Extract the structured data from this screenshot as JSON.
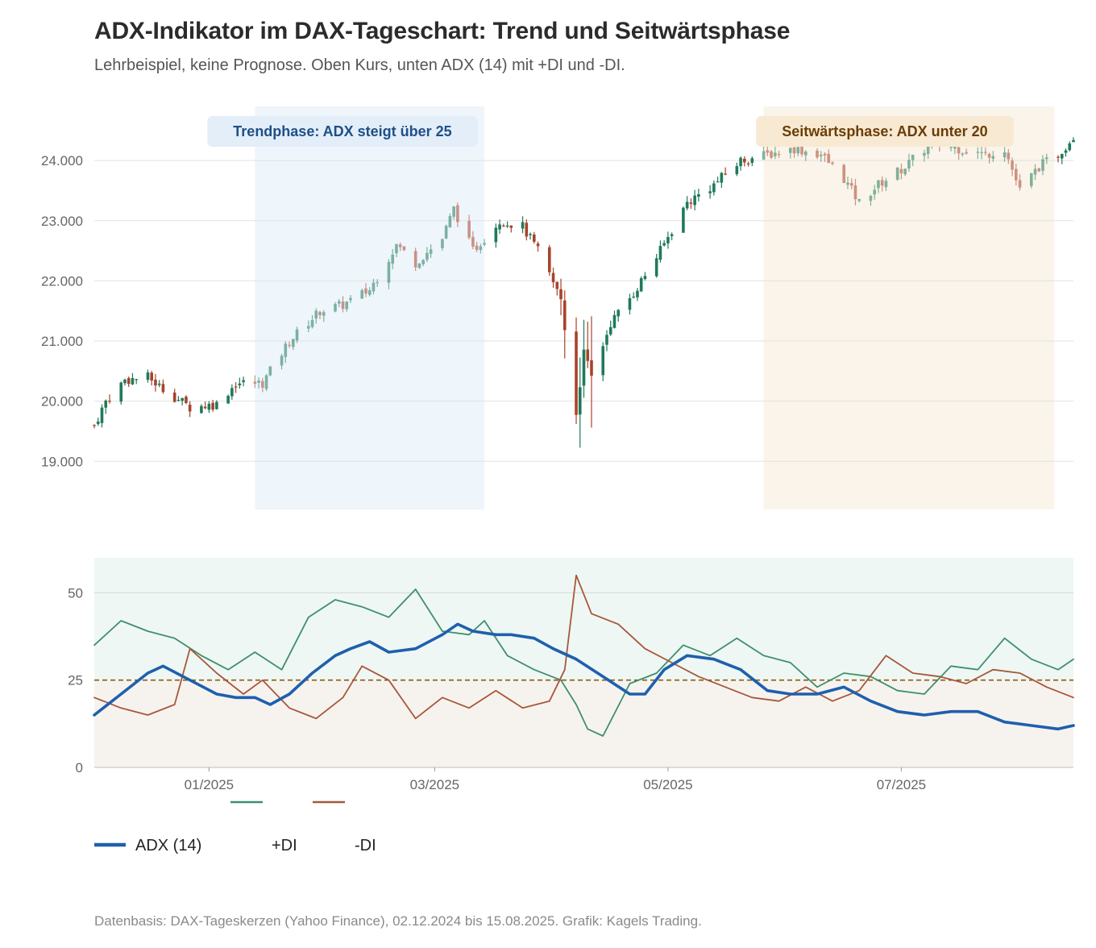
{
  "title": "ADX-Indikator im DAX-Tageschart: Trend und Seitwärtsphase",
  "subtitle": "Lehrbeispiel, keine Prognose. Oben Kurs, unten ADX (14) mit +DI und -DI.",
  "footer": "Datenbasis: DAX-Tageskerzen (Yahoo Finance), 02.12.2024 bis 15.08.2025. Grafik: Kagels Trading.",
  "colors": {
    "up": "#1f7a5a",
    "down": "#a8432b",
    "adx": "#1f5fad",
    "plus_di": "#3f8f6e",
    "minus_di": "#a8573a",
    "trend_zone": "#eef5fb",
    "trend_label_bg": "#e3eef9",
    "trend_label_text": "#1f4f86",
    "side_zone": "#faf4ea",
    "side_label_bg": "#f8e9d3",
    "side_label_text": "#6a3d06",
    "adx_upper_band": "#eef7f3",
    "adx_lower_band": "#f6f3ef",
    "threshold": "#8a5a10"
  },
  "annotations": {
    "trend": "Trendphase: ADX steigt über 25",
    "sideways": "Seitwärtsphase: ADX unter 20"
  },
  "legend": {
    "adx": "ADX (14)",
    "plus_di": "+DI",
    "minus_di": "-DI"
  },
  "chart_data": [
    {
      "type": "candlestick",
      "name": "DAX-Tageskerzen",
      "yticks": [
        19000,
        20000,
        21000,
        22000,
        23000,
        24000
      ],
      "ytick_labels": [
        "19.000",
        "20.000",
        "21.000",
        "22.000",
        "23.000",
        "24.000"
      ],
      "ylim": [
        18200,
        24900
      ],
      "xlim": [
        "2024-12-02",
        "2025-08-15"
      ],
      "grid": true,
      "shaded_ranges": [
        {
          "label": "trend",
          "from": "2025-01-13",
          "to": "2025-03-14"
        },
        {
          "label": "sideways",
          "from": "2025-05-26",
          "to": "2025-08-10"
        }
      ],
      "anchor_closes": [
        [
          "2024-12-02",
          19600
        ],
        [
          "2024-12-05",
          20000
        ],
        [
          "2024-12-10",
          20350
        ],
        [
          "2024-12-16",
          20400
        ],
        [
          "2024-12-20",
          20200
        ],
        [
          "2024-12-27",
          19900
        ],
        [
          "2025-01-03",
          19950
        ],
        [
          "2025-01-08",
          20300
        ],
        [
          "2025-01-15",
          20300
        ],
        [
          "2025-01-22",
          21000
        ],
        [
          "2025-01-30",
          21500
        ],
        [
          "2025-02-05",
          21600
        ],
        [
          "2025-02-12",
          21850
        ],
        [
          "2025-02-19",
          22600
        ],
        [
          "2025-02-24",
          22300
        ],
        [
          "2025-03-03",
          22700
        ],
        [
          "2025-03-06",
          23200
        ],
        [
          "2025-03-11",
          22500
        ],
        [
          "2025-03-18",
          23000
        ],
        [
          "2025-03-24",
          22900
        ],
        [
          "2025-03-28",
          22500
        ],
        [
          "2025-04-03",
          21700
        ],
        [
          "2025-04-07",
          19800
        ],
        [
          "2025-04-08",
          20300
        ],
        [
          "2025-04-09",
          20800
        ],
        [
          "2025-04-11",
          20400
        ],
        [
          "2025-04-16",
          21300
        ],
        [
          "2025-04-22",
          21800
        ],
        [
          "2025-04-29",
          22500
        ],
        [
          "2025-05-06",
          23300
        ],
        [
          "2025-05-13",
          23600
        ],
        [
          "2025-05-20",
          24000
        ],
        [
          "2025-05-27",
          24100
        ],
        [
          "2025-06-03",
          24200
        ],
        [
          "2025-06-10",
          24100
        ],
        [
          "2025-06-16",
          23700
        ],
        [
          "2025-06-20",
          23300
        ],
        [
          "2025-06-25",
          23600
        ],
        [
          "2025-07-02",
          23900
        ],
        [
          "2025-07-09",
          24300
        ],
        [
          "2025-07-16",
          24200
        ],
        [
          "2025-07-23",
          24100
        ],
        [
          "2025-07-28",
          24200
        ],
        [
          "2025-08-01",
          23500
        ],
        [
          "2025-08-06",
          23900
        ],
        [
          "2025-08-11",
          24100
        ],
        [
          "2025-08-15",
          24400
        ]
      ]
    },
    {
      "type": "line",
      "name": "ADX (14) mit +DI und -DI",
      "yticks": [
        0,
        25,
        50
      ],
      "ylim": [
        0,
        60
      ],
      "xlim": [
        "2024-12-02",
        "2025-08-15"
      ],
      "xticks": [
        "2025-01-01",
        "2025-03-01",
        "2025-05-01",
        "2025-07-01"
      ],
      "xtick_labels": [
        "01/2025",
        "03/2025",
        "05/2025",
        "07/2025"
      ],
      "threshold": 25,
      "grid": true,
      "legend_position": "bottom-left",
      "series": [
        {
          "name": "ADX (14)",
          "values": [
            [
              "2024-12-02",
              15
            ],
            [
              "2024-12-09",
              21
            ],
            [
              "2024-12-16",
              27
            ],
            [
              "2024-12-20",
              29
            ],
            [
              "2024-12-27",
              25
            ],
            [
              "2025-01-03",
              21
            ],
            [
              "2025-01-08",
              20
            ],
            [
              "2025-01-13",
              20
            ],
            [
              "2025-01-17",
              18
            ],
            [
              "2025-01-22",
              21
            ],
            [
              "2025-01-28",
              27
            ],
            [
              "2025-02-03",
              32
            ],
            [
              "2025-02-07",
              34
            ],
            [
              "2025-02-12",
              36
            ],
            [
              "2025-02-17",
              33
            ],
            [
              "2025-02-24",
              34
            ],
            [
              "2025-03-03",
              38
            ],
            [
              "2025-03-07",
              41
            ],
            [
              "2025-03-11",
              39
            ],
            [
              "2025-03-17",
              38
            ],
            [
              "2025-03-21",
              38
            ],
            [
              "2025-03-27",
              37
            ],
            [
              "2025-04-01",
              34
            ],
            [
              "2025-04-07",
              31
            ],
            [
              "2025-04-14",
              26
            ],
            [
              "2025-04-21",
              21
            ],
            [
              "2025-04-25",
              21
            ],
            [
              "2025-04-30",
              28
            ],
            [
              "2025-05-06",
              32
            ],
            [
              "2025-05-13",
              31
            ],
            [
              "2025-05-20",
              28
            ],
            [
              "2025-05-27",
              22
            ],
            [
              "2025-06-02",
              21
            ],
            [
              "2025-06-09",
              21
            ],
            [
              "2025-06-16",
              23
            ],
            [
              "2025-06-23",
              19
            ],
            [
              "2025-06-30",
              16
            ],
            [
              "2025-07-07",
              15
            ],
            [
              "2025-07-14",
              16
            ],
            [
              "2025-07-21",
              16
            ],
            [
              "2025-07-28",
              13
            ],
            [
              "2025-08-04",
              12
            ],
            [
              "2025-08-11",
              11
            ],
            [
              "2025-08-15",
              12
            ]
          ]
        },
        {
          "name": "+DI",
          "values": [
            [
              "2024-12-02",
              35
            ],
            [
              "2024-12-09",
              42
            ],
            [
              "2024-12-16",
              39
            ],
            [
              "2024-12-23",
              37
            ],
            [
              "2024-12-30",
              32
            ],
            [
              "2025-01-06",
              28
            ],
            [
              "2025-01-13",
              33
            ],
            [
              "2025-01-20",
              28
            ],
            [
              "2025-01-27",
              43
            ],
            [
              "2025-02-03",
              48
            ],
            [
              "2025-02-10",
              46
            ],
            [
              "2025-02-17",
              43
            ],
            [
              "2025-02-24",
              51
            ],
            [
              "2025-03-03",
              39
            ],
            [
              "2025-03-10",
              38
            ],
            [
              "2025-03-14",
              42
            ],
            [
              "2025-03-20",
              32
            ],
            [
              "2025-03-27",
              28
            ],
            [
              "2025-04-03",
              25
            ],
            [
              "2025-04-07",
              18
            ],
            [
              "2025-04-10",
              11
            ],
            [
              "2025-04-14",
              9
            ],
            [
              "2025-04-21",
              24
            ],
            [
              "2025-04-28",
              27
            ],
            [
              "2025-05-05",
              35
            ],
            [
              "2025-05-12",
              32
            ],
            [
              "2025-05-19",
              37
            ],
            [
              "2025-05-26",
              32
            ],
            [
              "2025-06-02",
              30
            ],
            [
              "2025-06-09",
              23
            ],
            [
              "2025-06-16",
              27
            ],
            [
              "2025-06-23",
              26
            ],
            [
              "2025-06-30",
              22
            ],
            [
              "2025-07-07",
              21
            ],
            [
              "2025-07-14",
              29
            ],
            [
              "2025-07-21",
              28
            ],
            [
              "2025-07-28",
              37
            ],
            [
              "2025-08-04",
              31
            ],
            [
              "2025-08-11",
              28
            ],
            [
              "2025-08-15",
              31
            ]
          ]
        },
        {
          "name": "-DI",
          "values": [
            [
              "2024-12-02",
              20
            ],
            [
              "2024-12-09",
              17
            ],
            [
              "2024-12-16",
              15
            ],
            [
              "2024-12-23",
              18
            ],
            [
              "2024-12-27",
              34
            ],
            [
              "2025-01-03",
              27
            ],
            [
              "2025-01-10",
              21
            ],
            [
              "2025-01-15",
              25
            ],
            [
              "2025-01-22",
              17
            ],
            [
              "2025-01-29",
              14
            ],
            [
              "2025-02-05",
              20
            ],
            [
              "2025-02-10",
              29
            ],
            [
              "2025-02-17",
              25
            ],
            [
              "2025-02-24",
              14
            ],
            [
              "2025-03-03",
              20
            ],
            [
              "2025-03-10",
              17
            ],
            [
              "2025-03-17",
              22
            ],
            [
              "2025-03-24",
              17
            ],
            [
              "2025-03-31",
              19
            ],
            [
              "2025-04-04",
              28
            ],
            [
              "2025-04-07",
              55
            ],
            [
              "2025-04-11",
              44
            ],
            [
              "2025-04-18",
              41
            ],
            [
              "2025-04-25",
              34
            ],
            [
              "2025-05-02",
              30
            ],
            [
              "2025-05-09",
              26
            ],
            [
              "2025-05-16",
              23
            ],
            [
              "2025-05-23",
              20
            ],
            [
              "2025-05-30",
              19
            ],
            [
              "2025-06-06",
              23
            ],
            [
              "2025-06-13",
              19
            ],
            [
              "2025-06-20",
              22
            ],
            [
              "2025-06-27",
              32
            ],
            [
              "2025-07-04",
              27
            ],
            [
              "2025-07-11",
              26
            ],
            [
              "2025-07-18",
              24
            ],
            [
              "2025-07-25",
              28
            ],
            [
              "2025-08-01",
              27
            ],
            [
              "2025-08-08",
              23
            ],
            [
              "2025-08-15",
              20
            ]
          ]
        }
      ]
    }
  ]
}
